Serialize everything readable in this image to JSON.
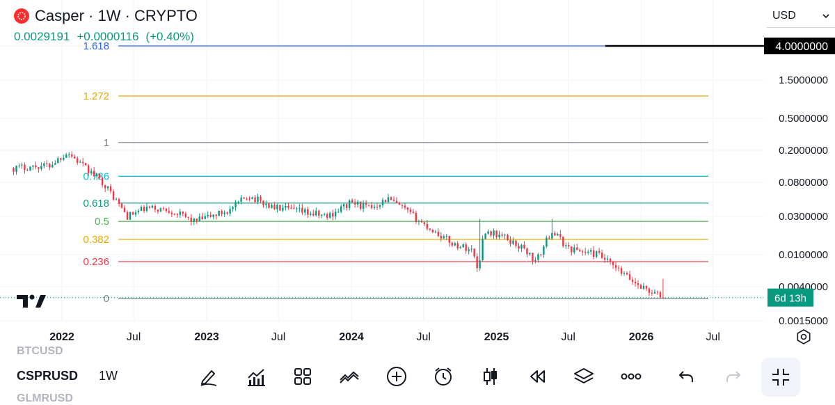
{
  "header": {
    "title": "Casper · 1W · CRYPTO",
    "last_price": "0.0029191",
    "change": "+0.0000116",
    "change_pct": "(+0.40%)",
    "logo_icon": "casper-logo-icon"
  },
  "currency_select": {
    "value": "USD"
  },
  "colors": {
    "up": "#089981",
    "down": "#f23645",
    "brand": "#ff2d2e"
  },
  "chart_data": {
    "type": "candlestick",
    "title": "Casper · 1W · CRYPTO",
    "y_scale": "log",
    "y_ticks": [
      "1.5000000",
      "0.5000000",
      "0.2000000",
      "0.0800000",
      "0.0300000",
      "0.0100000",
      "0.0040000",
      "0.0015000"
    ],
    "y_tick_values": [
      1.5,
      0.5,
      0.2,
      0.08,
      0.03,
      0.01,
      0.004,
      0.0015
    ],
    "x_ticks": [
      "2022",
      "Jul",
      "2023",
      "Jul",
      "2024",
      "Jul",
      "2025",
      "Jul",
      "2026",
      "Jul"
    ],
    "x_tick_dates": [
      "2022-01-01",
      "2022-07-01",
      "2023-01-01",
      "2023-07-01",
      "2024-01-01",
      "2024-07-01",
      "2025-01-01",
      "2025-07-01",
      "2026-01-01",
      "2026-07-01"
    ],
    "bold_x_ticks": [
      "2022",
      "2023",
      "2024",
      "2025",
      "2026"
    ],
    "fib_levels": [
      {
        "label": "1.618",
        "price": 4.0,
        "color": "#2962ff"
      },
      {
        "label": "1.272",
        "price": 0.95,
        "color": "#e6a700"
      },
      {
        "label": "1",
        "price": 0.25,
        "color": "#787b86"
      },
      {
        "label": "0.786",
        "price": 0.095,
        "color": "#00bcd4"
      },
      {
        "label": "0.618",
        "price": 0.044,
        "color": "#089981"
      },
      {
        "label": "0.5",
        "price": 0.026,
        "color": "#4caf50"
      },
      {
        "label": "0.382",
        "price": 0.0155,
        "color": "#e6a700"
      },
      {
        "label": "0.236",
        "price": 0.0082,
        "color": "#f23645"
      },
      {
        "label": "0",
        "price": 0.00285,
        "color": "#787b86"
      }
    ],
    "price_tag": {
      "value": "4.0000000",
      "price": 4.0
    },
    "countdown": {
      "value": "6d 13h",
      "price": 0.00292
    },
    "last_price": 0.0029191,
    "trend": [
      [
        "2021-09-01",
        0.12
      ],
      [
        "2021-12-01",
        0.13
      ],
      [
        "2022-01-15",
        0.19
      ],
      [
        "2022-03-01",
        0.12
      ],
      [
        "2022-04-15",
        0.08
      ],
      [
        "2022-06-15",
        0.03
      ],
      [
        "2022-08-01",
        0.038
      ],
      [
        "2022-10-01",
        0.036
      ],
      [
        "2022-12-01",
        0.026
      ],
      [
        "2023-03-01",
        0.036
      ],
      [
        "2023-04-15",
        0.055
      ],
      [
        "2023-06-15",
        0.039
      ],
      [
        "2023-09-01",
        0.034
      ],
      [
        "2023-11-01",
        0.03
      ],
      [
        "2024-01-01",
        0.045
      ],
      [
        "2024-02-15",
        0.038
      ],
      [
        "2024-04-01",
        0.05
      ],
      [
        "2024-05-15",
        0.036
      ],
      [
        "2024-07-01",
        0.024
      ],
      [
        "2024-09-15",
        0.0135
      ],
      [
        "2024-11-01",
        0.0115
      ],
      [
        "2024-11-15",
        0.0065
      ],
      [
        "2024-12-01",
        0.02
      ],
      [
        "2025-01-15",
        0.017
      ],
      [
        "2025-03-15",
        0.0115
      ],
      [
        "2025-04-10",
        0.008
      ],
      [
        "2025-05-20",
        0.02
      ],
      [
        "2025-07-01",
        0.012
      ],
      [
        "2025-09-15",
        0.01
      ],
      [
        "2025-11-01",
        0.0065
      ],
      [
        "2025-12-15",
        0.0045
      ],
      [
        "2026-02-01",
        0.0033
      ],
      [
        "2026-03-01",
        0.0029
      ]
    ],
    "spikes": [
      [
        "2024-11-22",
        0.028
      ],
      [
        "2025-05-22",
        0.028
      ],
      [
        "2026-02-22",
        0.005
      ]
    ],
    "grid": true,
    "legend": "none"
  },
  "toolbar": {
    "ghost_above": "BTCUSD",
    "symbol": "CSPRUSD",
    "ghost_below": "GLMRUSD",
    "interval": "1W",
    "buttons": [
      {
        "name": "draw-pencil-icon"
      },
      {
        "name": "indicators-icon"
      },
      {
        "name": "templates-grid-icon"
      },
      {
        "name": "compare-icon"
      },
      {
        "name": "add-circle-icon"
      },
      {
        "name": "alert-clock-icon"
      },
      {
        "name": "candles-icon"
      },
      {
        "name": "replay-icon"
      },
      {
        "name": "layers-icon"
      },
      {
        "name": "more-icon"
      },
      {
        "name": "undo-icon"
      },
      {
        "name": "redo-icon"
      },
      {
        "name": "fullscreen-exit-icon"
      }
    ]
  }
}
